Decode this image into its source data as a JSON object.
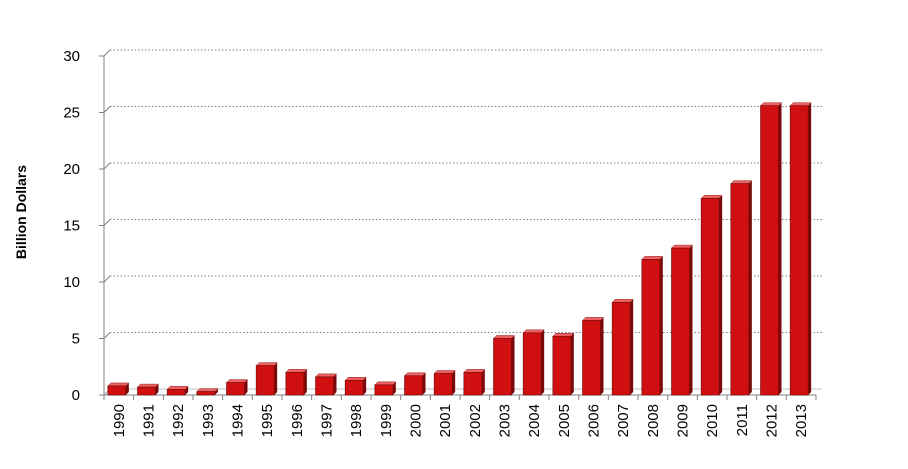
{
  "chart_data": {
    "type": "bar",
    "title": "",
    "xlabel": "",
    "ylabel": "Billion Dollars",
    "ylim": [
      0,
      30
    ],
    "yticks": [
      0,
      5,
      10,
      15,
      20,
      25,
      30
    ],
    "grid": true,
    "legend": "none",
    "categories": [
      "1990",
      "1991",
      "1992",
      "1993",
      "1994",
      "1995",
      "1996",
      "1997",
      "1998",
      "1999",
      "2000",
      "2001",
      "2002",
      "2003",
      "2004",
      "2005",
      "2006",
      "2007",
      "2008",
      "2009",
      "2010",
      "2011",
      "2012",
      "2013"
    ],
    "values": [
      0.8,
      0.7,
      0.5,
      0.3,
      1.1,
      2.6,
      2.0,
      1.6,
      1.3,
      0.9,
      1.7,
      1.9,
      2.0,
      5.0,
      5.5,
      5.2,
      6.6,
      8.2,
      12.0,
      13.0,
      17.4,
      18.7,
      25.6,
      25.6
    ],
    "colors": {
      "bar_front": "#d01010",
      "bar_side": "#7a0a0a",
      "bar_top": "#f06060",
      "grid": "#808080"
    }
  }
}
